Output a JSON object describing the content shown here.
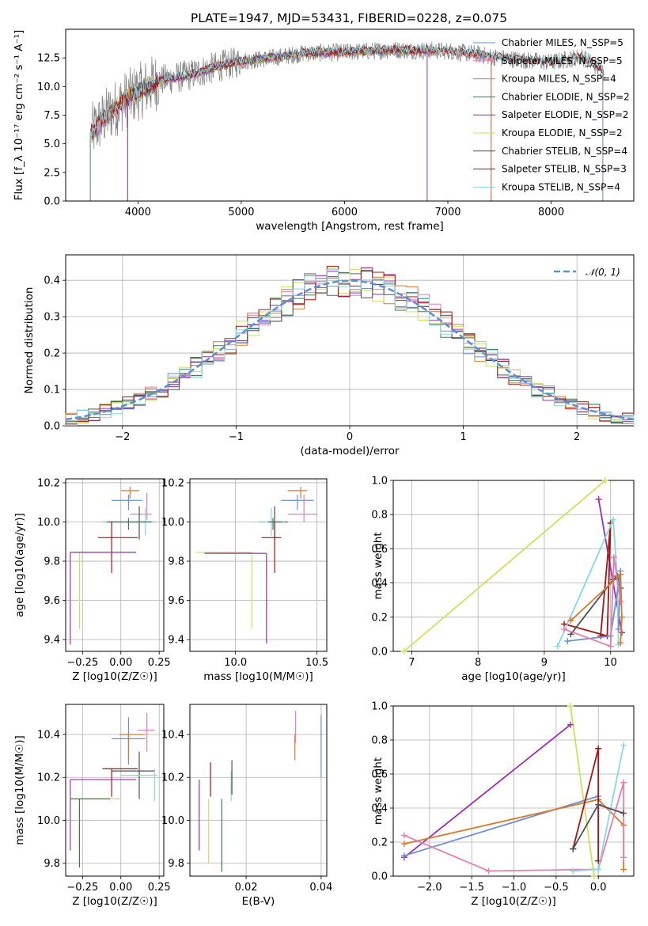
{
  "title": "PLATE=1947, MJD=53431, FIBERID=0228, z=0.075",
  "colors": {
    "chabrier_miles": "#6b8fd6",
    "salpeter_miles": "#e47fb3",
    "kroupa_miles": "#d9782a",
    "chabrier_elodie": "#3f7a4f",
    "salpeter_elodie": "#9a2fb0",
    "kroupa_elodie": "#c9e35a",
    "chabrier_stelib": "#505050",
    "salpeter_stelib": "#a81313",
    "kroupa_stelib": "#86d9e0",
    "data": "#808080",
    "gauss": "#5b8fd6"
  },
  "chart_data": [
    {
      "id": "spectrum",
      "type": "line",
      "title": "PLATE=1947, MJD=53431, FIBERID=0228, z=0.075",
      "xlabel": "wavelength [Angstrom, rest frame]",
      "ylabel": "Flux [f_λ 10⁻¹⁷ erg cm⁻² s⁻¹ A⁻¹]",
      "xlim": [
        3300,
        8800
      ],
      "ylim": [
        0,
        15
      ],
      "xticks": [
        "4000",
        "5000",
        "6000",
        "7000",
        "8000"
      ],
      "yticks": [
        "0.0",
        "2.5",
        "5.0",
        "7.5",
        "10.0",
        "12.5"
      ],
      "grid": false,
      "legend": "top-right",
      "series": [
        {
          "name": "Chabrier MILES, N_SSP=5"
        },
        {
          "name": "Salpeter MILES, N_SSP=5"
        },
        {
          "name": "Kroupa MILES, N_SSP=4"
        },
        {
          "name": "Chabrier ELODIE, N_SSP=2"
        },
        {
          "name": "Salpeter ELODIE, N_SSP=2"
        },
        {
          "name": "Kroupa ELODIE, N_SSP=2"
        },
        {
          "name": "Chabrier STELIB, N_SSP=4"
        },
        {
          "name": "Salpeter STELIB, N_SSP=3"
        },
        {
          "name": "Kroupa STELIB, N_SSP=4"
        }
      ],
      "continuum": {
        "x": [
          3550,
          3700,
          3900,
          4000,
          4200,
          4500,
          4800,
          5000,
          5300,
          5600,
          6000,
          6500,
          7000,
          7300,
          7500,
          8000,
          8300,
          8500
        ],
        "y": [
          6,
          7.5,
          9,
          9.5,
          10.5,
          11,
          11.8,
          12.2,
          12.5,
          12.9,
          13.0,
          13.2,
          13.1,
          12.8,
          12.5,
          12.1,
          12.6,
          11.4
        ]
      }
    },
    {
      "id": "residuals",
      "type": "bar",
      "xlabel": "(data-model)/error",
      "ylabel": "Normed distribution",
      "xlim": [
        -2.5,
        2.5
      ],
      "ylim": [
        0,
        0.47
      ],
      "xticks": [
        "−2",
        "−1",
        "0",
        "1",
        "2"
      ],
      "yticks": [
        "0.0",
        "0.1",
        "0.2",
        "0.3",
        "0.4"
      ],
      "grid": true,
      "legend": "top-right",
      "gauss_label": "𝒩(0, 1)"
    },
    {
      "id": "age_vs_Z",
      "type": "scatter",
      "xlabel": "Z [log10(Z/Z☉)]",
      "ylabel": "age [log10(age/yr)]",
      "xlim": [
        -0.36,
        0.28
      ],
      "ylim": [
        9.34,
        10.22
      ],
      "xticks": [
        "−0.25",
        "0.00",
        "0.25"
      ],
      "yticks": [
        "9.4",
        "9.6",
        "9.8",
        "10.0",
        "10.2"
      ],
      "grid": true,
      "points": [
        {
          "series": "kroupa_miles",
          "x": 0.06,
          "y": 10.16,
          "xerr": [
            0.06,
            0.06
          ],
          "yerr": [
            0.04,
            0.02
          ]
        },
        {
          "series": "chabrier_miles",
          "x": 0.05,
          "y": 10.11,
          "xerr": [
            0.11,
            0.09
          ],
          "yerr": [
            0.05,
            0.03
          ]
        },
        {
          "series": "salpeter_miles",
          "x": 0.17,
          "y": 10.04,
          "xerr": [
            0.11,
            0.03
          ],
          "yerr": [
            0.03,
            0.11
          ]
        },
        {
          "series": "chabrier_stelib",
          "x": 0.12,
          "y": 10.0,
          "xerr": [
            0.24,
            0.11
          ],
          "yerr": [
            0.09,
            0.08
          ]
        },
        {
          "series": "kroupa_stelib",
          "x": 0.16,
          "y": 10.0,
          "xerr": [
            0.28,
            0.07
          ],
          "yerr": [
            0.07,
            0.07
          ]
        },
        {
          "series": "chabrier_elodie",
          "x": 0.05,
          "y": 10.0,
          "xerr": [
            0.14,
            0.15
          ],
          "yerr": [
            0.04,
            0.02
          ]
        },
        {
          "series": "salpeter_stelib",
          "x": -0.06,
          "y": 9.92,
          "xerr": [
            0.09,
            0.17
          ],
          "yerr": [
            0.18,
            0.08
          ]
        },
        {
          "series": "kroupa_elodie",
          "x": -0.27,
          "y": 9.845,
          "xerr": [
            0.06,
            0.37
          ],
          "yerr": [
            0.39,
            0.0
          ]
        },
        {
          "series": "salpeter_elodie",
          "x": -0.33,
          "y": 9.845,
          "xerr": [
            0.0,
            0.43
          ],
          "yerr": [
            0.47,
            0.0
          ]
        }
      ]
    },
    {
      "id": "age_vs_mass",
      "type": "scatter",
      "xlabel": "mass [log10(M/M☉)]",
      "ylabel": "",
      "xlim": [
        9.72,
        10.56
      ],
      "ylim": [
        9.34,
        10.22
      ],
      "xticks": [
        "10.0",
        "10.5"
      ],
      "yticks": [
        "9.4",
        "9.6",
        "9.8",
        "10.0",
        "10.2"
      ],
      "grid": true,
      "points": [
        {
          "series": "kroupa_miles",
          "x": 10.4,
          "y": 10.16,
          "xerr": [
            0.08,
            0.04
          ],
          "yerr": [
            0.04,
            0.02
          ]
        },
        {
          "series": "chabrier_miles",
          "x": 10.38,
          "y": 10.11,
          "xerr": [
            0.1,
            0.1
          ],
          "yerr": [
            0.05,
            0.03
          ]
        },
        {
          "series": "salpeter_miles",
          "x": 10.42,
          "y": 10.04,
          "xerr": [
            0.1,
            0.08
          ],
          "yerr": [
            0.04,
            0.1
          ]
        },
        {
          "series": "chabrier_stelib",
          "x": 10.24,
          "y": 10.0,
          "xerr": [
            0.1,
            0.08
          ],
          "yerr": [
            0.09,
            0.08
          ]
        },
        {
          "series": "kroupa_stelib",
          "x": 10.22,
          "y": 10.0,
          "xerr": [
            0.08,
            0.08
          ],
          "yerr": [
            0.07,
            0.07
          ]
        },
        {
          "series": "chabrier_elodie",
          "x": 10.23,
          "y": 10.0,
          "xerr": [
            0.03,
            0.06
          ],
          "yerr": [
            0.04,
            0.02
          ]
        },
        {
          "series": "salpeter_stelib",
          "x": 10.24,
          "y": 9.92,
          "xerr": [
            0.08,
            0.04
          ],
          "yerr": [
            0.18,
            0.08
          ]
        },
        {
          "series": "kroupa_elodie",
          "x": 10.1,
          "y": 9.845,
          "xerr": [
            0.34,
            0.0
          ],
          "yerr": [
            0.39,
            0.0
          ]
        },
        {
          "series": "salpeter_elodie",
          "x": 10.19,
          "y": 9.84,
          "xerr": [
            0.38,
            0.0
          ],
          "yerr": [
            0.46,
            0.0
          ]
        }
      ]
    },
    {
      "id": "weight_vs_age",
      "type": "line",
      "xlabel": "age [log10(age/yr)]",
      "ylabel": "mass weight",
      "xlim": [
        6.72,
        10.35
      ],
      "ylim": [
        0,
        1
      ],
      "xticks": [
        "7",
        "8",
        "9",
        "10"
      ],
      "yticks": [
        "0.0",
        "0.2",
        "0.4",
        "0.6",
        "0.8",
        "1.0"
      ],
      "grid": true,
      "series": [
        {
          "key": "kroupa_elodie",
          "x": [
            6.88,
            9.92
          ],
          "y": [
            0.0,
            1.0
          ]
        },
        {
          "key": "salpeter_elodie",
          "x": [
            9.82,
            10.17
          ],
          "y": [
            0.89,
            0.11
          ]
        },
        {
          "key": "salpeter_stelib",
          "x": [
            9.3,
            9.95,
            10.0,
            9.85
          ],
          "y": [
            0.16,
            0.09,
            0.75,
            0.09
          ]
        },
        {
          "key": "kroupa_stelib",
          "x": [
            9.2,
            10.04,
            10.1,
            10.12
          ],
          "y": [
            0.03,
            0.77,
            0.43,
            0.04
          ]
        },
        {
          "key": "chabrier_stelib",
          "x": [
            9.4,
            10.04,
            10.1,
            10.15
          ],
          "y": [
            0.1,
            0.42,
            0.44,
            0.37
          ]
        },
        {
          "key": "chabrier_miles",
          "x": [
            9.35,
            10.0,
            10.15,
            10.12
          ],
          "y": [
            0.06,
            0.09,
            0.47,
            0.13
          ]
        },
        {
          "key": "salpeter_miles",
          "x": [
            9.3,
            10.0,
            10.05,
            10.15
          ],
          "y": [
            0.13,
            0.03,
            0.55,
            0.29
          ]
        },
        {
          "key": "kroupa_miles",
          "x": [
            9.4,
            10.15,
            10.17,
            10.15
          ],
          "y": [
            0.18,
            0.45,
            0.2,
            0.05
          ]
        }
      ]
    },
    {
      "id": "mass_vs_Z",
      "type": "scatter",
      "xlabel": "Z [log10(Z/Z☉)]",
      "ylabel": "mass [log10(M/M☉)]",
      "xlim": [
        -0.36,
        0.28
      ],
      "ylim": [
        9.74,
        10.54
      ],
      "xticks": [
        "−0.25",
        "0.00",
        "0.25"
      ],
      "yticks": [
        "9.8",
        "10.0",
        "10.2",
        "10.4"
      ],
      "grid": true,
      "points": [
        {
          "series": "chabrier_miles",
          "x": 0.05,
          "y": 10.38,
          "xerr": [
            0.11,
            0.11
          ],
          "yerr": [
            0.12,
            0.1
          ]
        },
        {
          "series": "kroupa_miles",
          "x": 0.05,
          "y": 10.4,
          "xerr": [
            0.06,
            0.11
          ],
          "yerr": [
            0.12,
            0.0
          ]
        },
        {
          "series": "salpeter_miles",
          "x": 0.17,
          "y": 10.42,
          "xerr": [
            0.06,
            0.05
          ],
          "yerr": [
            0.1,
            0.08
          ]
        },
        {
          "series": "chabrier_stelib",
          "x": 0.12,
          "y": 10.23,
          "xerr": [
            0.18,
            0.1
          ],
          "yerr": [
            0.13,
            0.09
          ]
        },
        {
          "series": "kroupa_stelib",
          "x": 0.22,
          "y": 10.21,
          "xerr": [
            0.22,
            0.02
          ],
          "yerr": [
            0.12,
            0.03
          ]
        },
        {
          "series": "salpeter_stelib",
          "x": -0.06,
          "y": 10.24,
          "xerr": [
            0.06,
            0.17
          ],
          "yerr": [
            0.13,
            0.0
          ]
        },
        {
          "series": "salpeter_elodie",
          "x": -0.33,
          "y": 10.19,
          "xerr": [
            0.0,
            0.43
          ],
          "yerr": [
            0.33,
            0.0
          ]
        },
        {
          "series": "kroupa_elodie",
          "x": -0.27,
          "y": 10.1,
          "xerr": [
            0.06,
            0.27
          ],
          "yerr": [
            0.3,
            0.0
          ]
        },
        {
          "series": "chabrier_elodie",
          "x": -0.27,
          "y": 10.1,
          "xerr": [
            0.06,
            0.2
          ],
          "yerr": [
            0.32,
            0.0
          ]
        }
      ]
    },
    {
      "id": "mass_vs_ebv",
      "type": "scatter",
      "xlabel": "E(B-V)",
      "ylabel": "",
      "xlim": [
        0.005,
        0.0415
      ],
      "ylim": [
        9.74,
        10.54
      ],
      "xticks": [
        "0.02",
        "0.04"
      ],
      "yticks": [
        "9.8",
        "10.0",
        "10.2",
        "10.4"
      ],
      "grid": true,
      "points": [
        {
          "series": "salpeter_elodie",
          "x": 0.0075,
          "y": 10.19,
          "yerr": [
            0.33,
            0.0
          ]
        },
        {
          "series": "kroupa_elodie",
          "x": 0.01,
          "y": 10.1,
          "yerr": [
            0.3,
            0.0
          ]
        },
        {
          "series": "salpeter_stelib",
          "x": 0.0105,
          "y": 10.24,
          "yerr": [
            0.13,
            0.03
          ]
        },
        {
          "series": "chabrier_elodie",
          "x": 0.0135,
          "y": 10.1,
          "yerr": [
            0.34,
            0.0
          ]
        },
        {
          "series": "kroupa_stelib",
          "x": 0.016,
          "y": 10.21,
          "yerr": [
            0.12,
            0.02
          ]
        },
        {
          "series": "chabrier_stelib",
          "x": 0.0162,
          "y": 10.23,
          "yerr": [
            0.11,
            0.05
          ]
        },
        {
          "series": "kroupa_miles",
          "x": 0.033,
          "y": 10.4,
          "yerr": [
            0.12,
            0.0
          ]
        },
        {
          "series": "salpeter_miles",
          "x": 0.0332,
          "y": 10.42,
          "yerr": [
            0.06,
            0.09
          ]
        },
        {
          "series": "chabrier_miles",
          "x": 0.04,
          "y": 10.38,
          "yerr": [
            0.18,
            0.11
          ]
        }
      ]
    },
    {
      "id": "weight_vs_Z",
      "type": "line",
      "xlabel": "Z [log10(Z/Z☉)]",
      "ylabel": "mass weight",
      "xlim": [
        -2.43,
        0.42
      ],
      "ylim": [
        0,
        1
      ],
      "xticks": [
        "−2.0",
        "−1.5",
        "−1.0",
        "−0.5",
        "0.0"
      ],
      "yticks": [
        "0.0",
        "0.2",
        "0.4",
        "0.6",
        "0.8",
        "1.0"
      ],
      "grid": true,
      "series": [
        {
          "key": "kroupa_elodie",
          "x": [
            -0.33,
            -0.05
          ],
          "y": [
            1.0,
            0.0
          ]
        },
        {
          "key": "salpeter_elodie",
          "x": [
            -2.3,
            -0.33
          ],
          "y": [
            0.11,
            0.89
          ]
        },
        {
          "key": "chabrier_miles",
          "x": [
            -2.3,
            0.0,
            0.0
          ],
          "y": [
            0.12,
            0.47,
            0.09
          ]
        },
        {
          "key": "kroupa_miles",
          "x": [
            -2.3,
            0.0,
            0.3,
            0.3
          ],
          "y": [
            0.19,
            0.45,
            0.3,
            0.04
          ]
        },
        {
          "key": "salpeter_miles",
          "x": [
            -2.3,
            -1.3,
            0.0,
            0.3,
            0.3
          ],
          "y": [
            0.24,
            0.03,
            0.04,
            0.55,
            0.11
          ]
        },
        {
          "key": "salpeter_stelib",
          "x": [
            -0.3,
            0.0,
            0.0
          ],
          "y": [
            0.16,
            0.75,
            0.09
          ]
        },
        {
          "key": "kroupa_stelib",
          "x": [
            -0.3,
            0.0,
            0.3
          ],
          "y": [
            0.03,
            0.04,
            0.77
          ]
        },
        {
          "key": "chabrier_stelib",
          "x": [
            -0.3,
            0.0,
            0.3
          ],
          "y": [
            0.16,
            0.42,
            0.37
          ]
        }
      ]
    }
  ]
}
